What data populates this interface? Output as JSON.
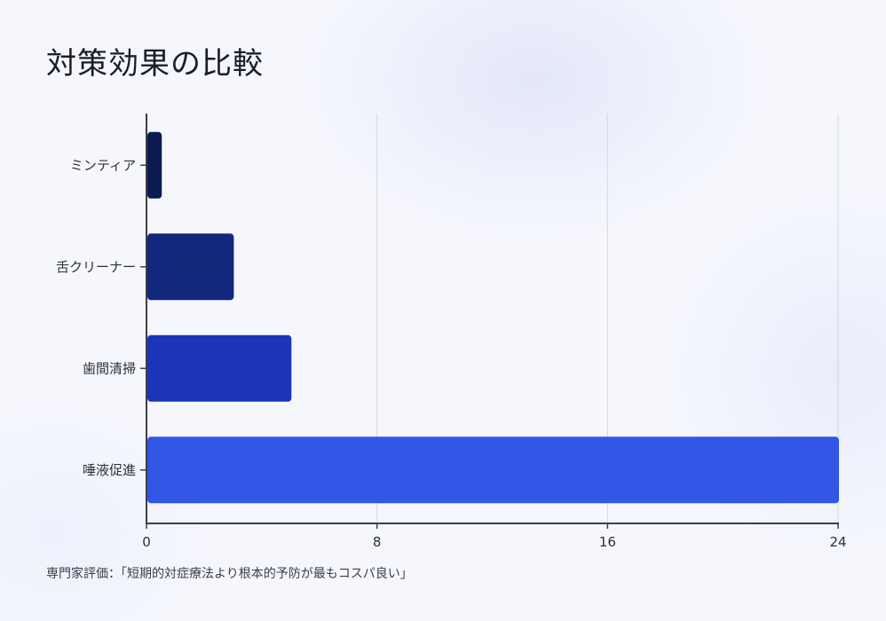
{
  "title": "対策効果の比較",
  "footnote": "専門家評価：「短期的対症療法より根本的予防が最もコスパ良い」",
  "chart_data": {
    "type": "bar",
    "orientation": "horizontal",
    "categories": [
      "ミンティア",
      "舌クリーナー",
      "歯間清掃",
      "唾液促進"
    ],
    "values": [
      0.5,
      3,
      5,
      24
    ],
    "xlim": [
      0,
      24
    ],
    "xticks": [
      "0",
      "8",
      "16",
      "24"
    ],
    "grid": true,
    "colors": [
      "#0b1a4f",
      "#13287c",
      "#1c34b8",
      "#3256e6"
    ]
  }
}
